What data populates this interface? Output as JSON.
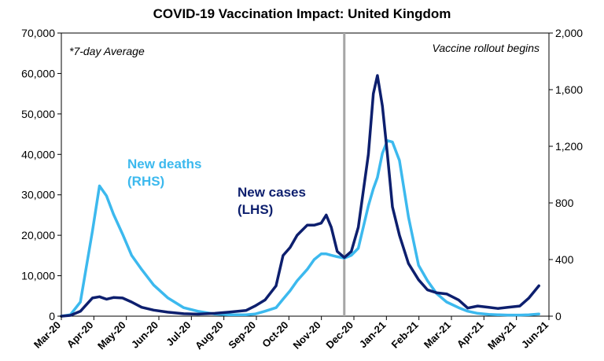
{
  "chart_data": {
    "type": "line",
    "title": "COVID-19 Vaccination Impact: United Kingdom",
    "x": [
      "2020-03-01",
      "2020-03-10",
      "2020-03-20",
      "2020-04-01",
      "2020-04-08",
      "2020-04-15",
      "2020-04-22",
      "2020-05-01",
      "2020-05-10",
      "2020-05-20",
      "2020-06-01",
      "2020-06-15",
      "2020-07-01",
      "2020-07-15",
      "2020-08-01",
      "2020-08-15",
      "2020-09-01",
      "2020-09-10",
      "2020-09-20",
      "2020-10-01",
      "2020-10-08",
      "2020-10-15",
      "2020-10-22",
      "2020-11-01",
      "2020-11-08",
      "2020-11-15",
      "2020-11-20",
      "2020-11-25",
      "2020-12-01",
      "2020-12-08",
      "2020-12-15",
      "2020-12-22",
      "2021-01-01",
      "2021-01-06",
      "2021-01-10",
      "2021-01-15",
      "2021-01-20",
      "2021-01-25",
      "2021-02-01",
      "2021-02-10",
      "2021-02-20",
      "2021-03-01",
      "2021-03-10",
      "2021-03-20",
      "2021-04-01",
      "2021-04-10",
      "2021-04-20",
      "2021-05-01",
      "2021-05-10",
      "2021-05-20",
      "2021-06-01",
      "2021-06-10",
      "2021-06-20"
    ],
    "series": [
      {
        "name": "New cases (LHS)",
        "axis": "left",
        "color": "#0d1f6e",
        "values": [
          0,
          200,
          1200,
          4500,
          4800,
          4200,
          4600,
          4500,
          3500,
          2200,
          1500,
          1000,
          600,
          500,
          700,
          1000,
          1400,
          2500,
          4000,
          7500,
          15000,
          17000,
          20000,
          22500,
          22500,
          23000,
          25000,
          22000,
          16000,
          14500,
          16000,
          22000,
          40000,
          55000,
          59500,
          52000,
          40000,
          27000,
          20000,
          13000,
          9000,
          6500,
          5800,
          5500,
          4000,
          2000,
          2500,
          2200,
          1900,
          2200,
          2500,
          4500,
          7500
        ]
      },
      {
        "name": "New deaths (RHS)",
        "axis": "right",
        "color": "#3cb9ee",
        "values": [
          0,
          10,
          100,
          600,
          920,
          850,
          720,
          580,
          430,
          330,
          220,
          130,
          60,
          35,
          15,
          10,
          10,
          15,
          35,
          60,
          120,
          180,
          250,
          330,
          400,
          440,
          440,
          430,
          420,
          410,
          430,
          480,
          780,
          900,
          980,
          1150,
          1240,
          1230,
          1100,
          700,
          360,
          250,
          160,
          100,
          60,
          35,
          20,
          12,
          10,
          8,
          8,
          10,
          15
        ]
      }
    ],
    "y_left": {
      "min": 0,
      "max": 70000,
      "ticks": [
        "0",
        "10,000",
        "20,000",
        "30,000",
        "40,000",
        "50,000",
        "60,000",
        "70,000"
      ]
    },
    "y_right": {
      "min": 0,
      "max": 2000,
      "ticks": [
        "0",
        "400",
        "800",
        "1,200",
        "1,600",
        "2,000"
      ]
    },
    "x_ticks": [
      "Mar-20",
      "Apr-20",
      "May-20",
      "Jun-20",
      "Jul-20",
      "Aug-20",
      "Sep-20",
      "Oct-20",
      "Nov-20",
      "Dec-20",
      "Jan-21",
      "Feb-21",
      "Mar-21",
      "Apr-21",
      "May-21",
      "Jun-21"
    ],
    "annotations": {
      "average_note": "*7-day Average",
      "rollout_note": "Vaccine rollout begins",
      "rollout_date": "2020-12-08"
    },
    "series_labels": {
      "deaths_line1": "New deaths",
      "deaths_line2": "(RHS)",
      "cases_line1": "New cases",
      "cases_line2": "(LHS)"
    },
    "grid": false
  }
}
